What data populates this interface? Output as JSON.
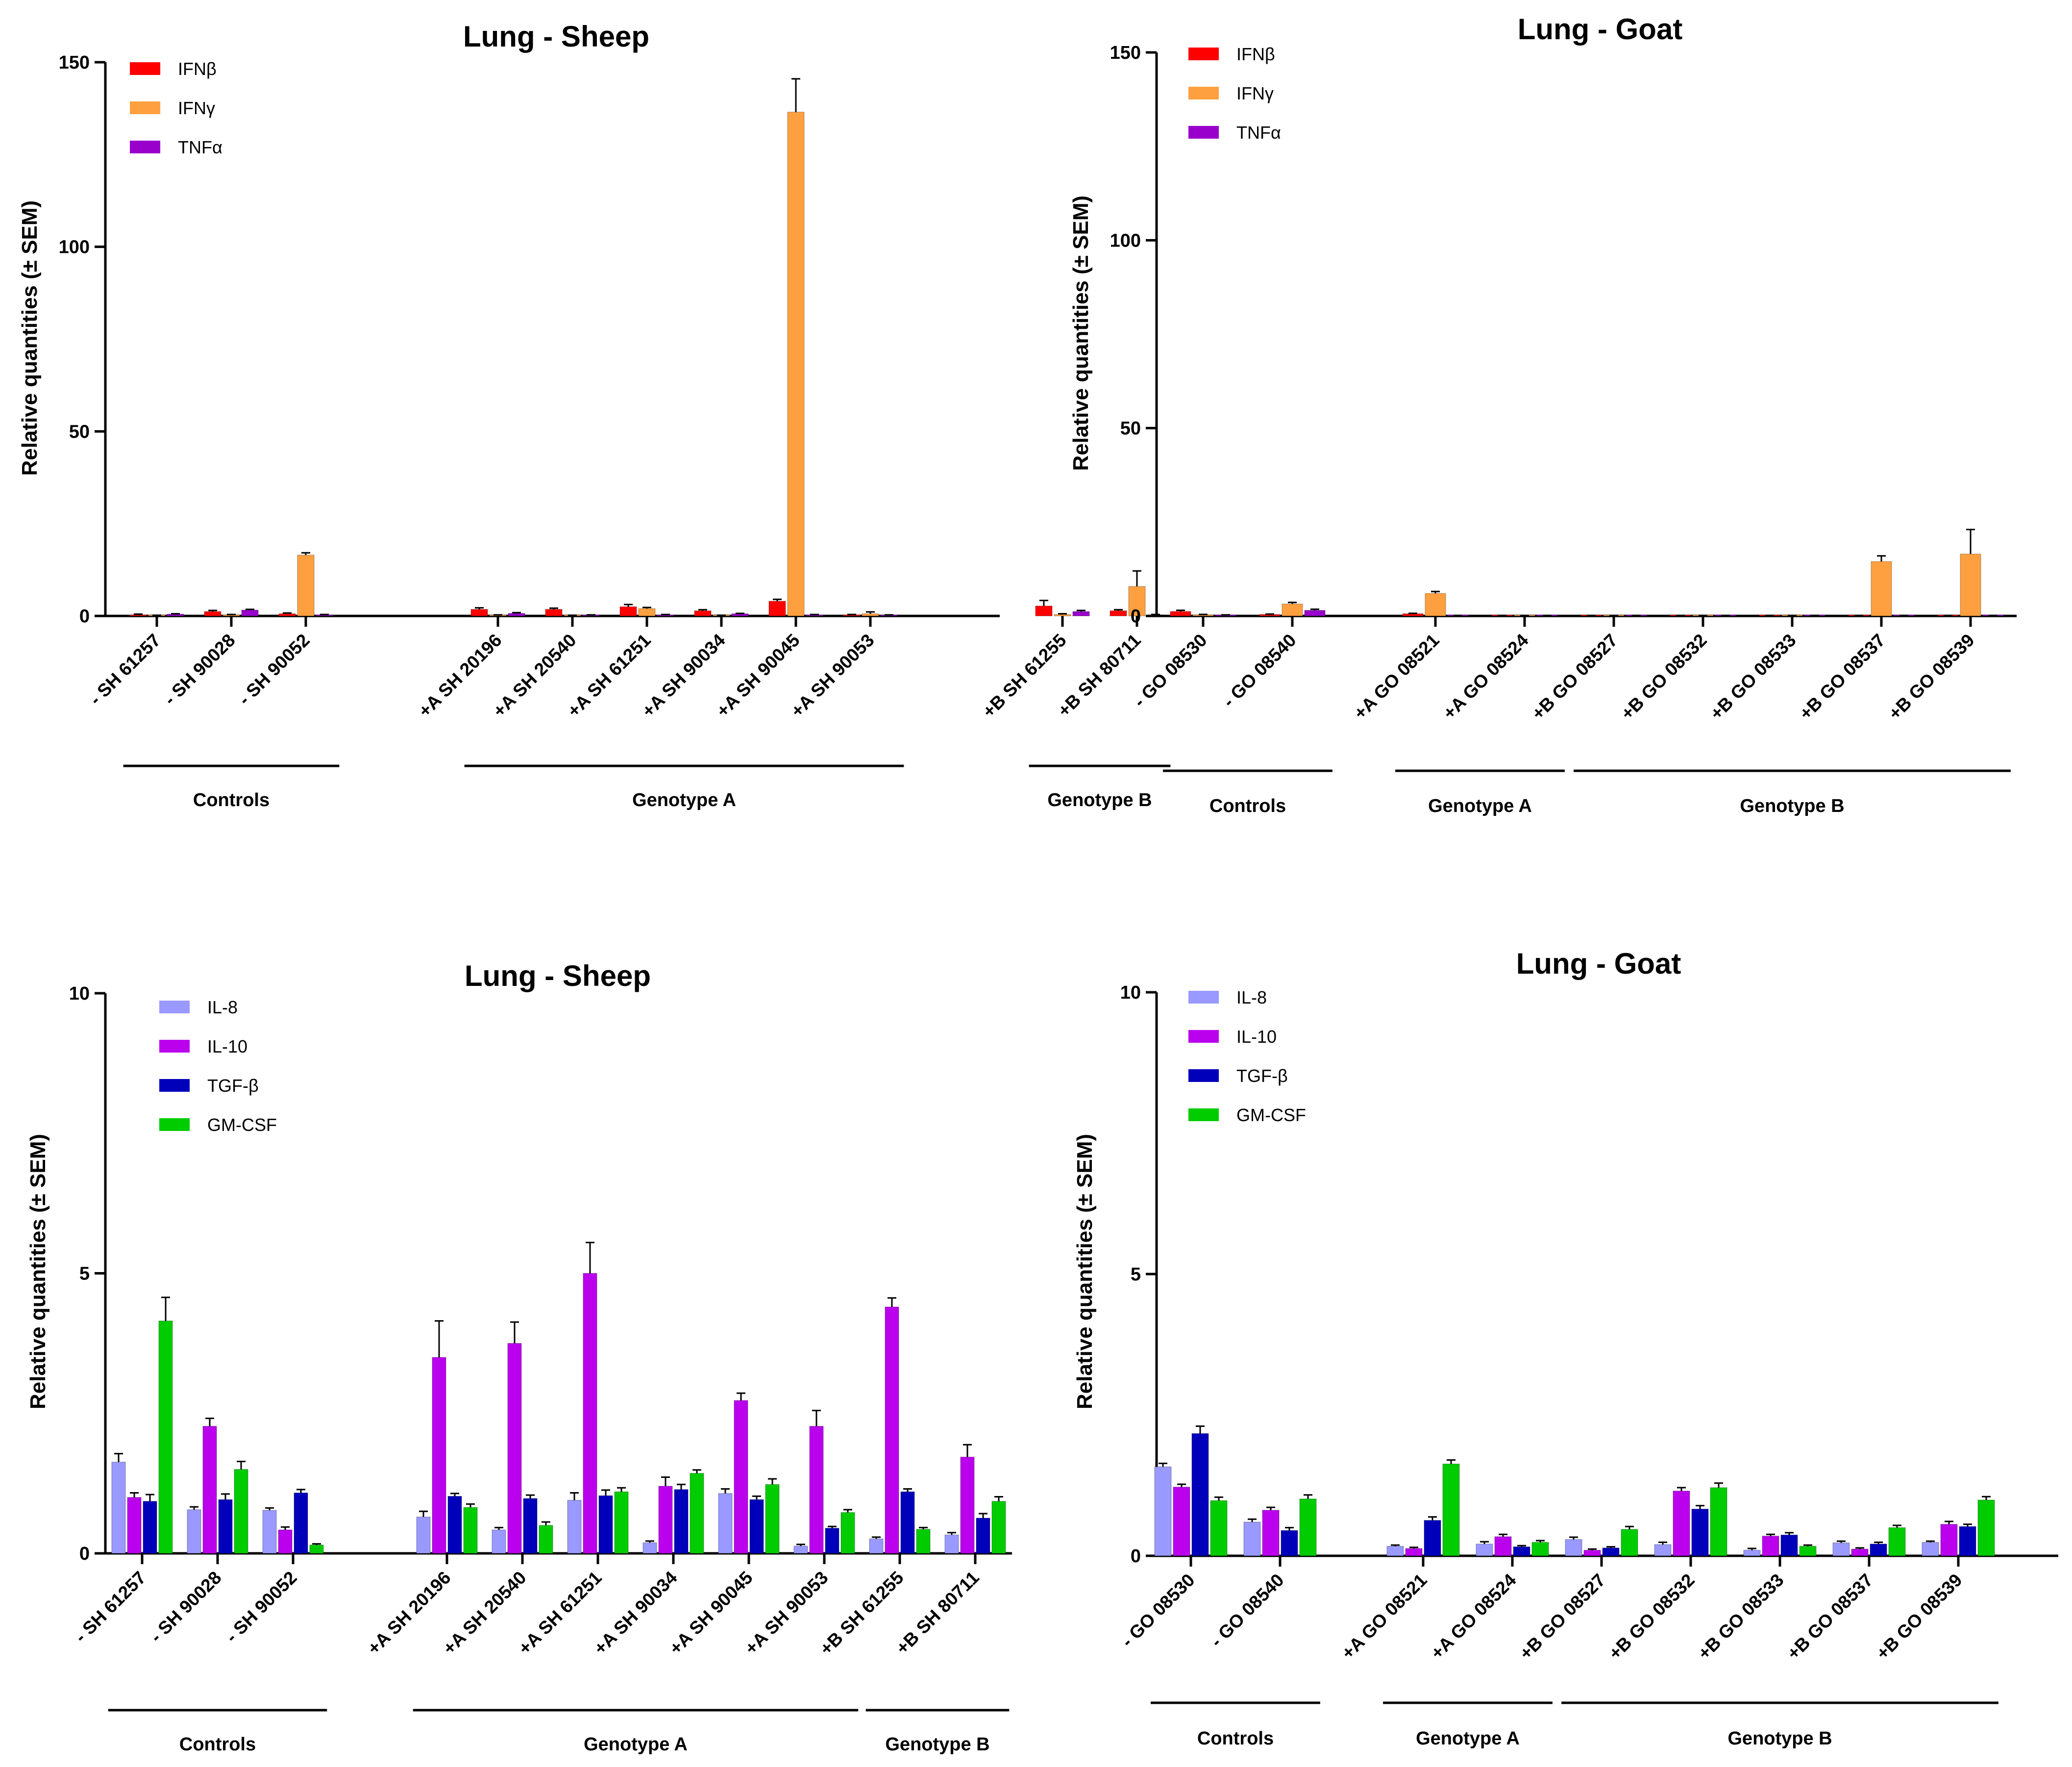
{
  "colors": {
    "IFNβ": "#ff0000",
    "IFNγ": "#ffa040",
    "TNFα": "#9900cc",
    "IL-8": "#9999ff",
    "IL-10": "#bb00ee",
    "TGF-β": "#0000bb",
    "GM-CSF": "#00cc00",
    "axis": "#000000",
    "errorbar": "#000000"
  },
  "chart_data": [
    {
      "type": "bar",
      "title": "Lung - Sheep",
      "xlabel": "",
      "ylabel": "Relative quantities (± SEM)",
      "ylim": [
        0,
        150
      ],
      "yticks": [
        0,
        50,
        100,
        150
      ],
      "legend_position": "top-left",
      "categories": [
        "- SH 61257",
        "- SH 90028",
        "- SH 90052",
        "+A SH 20196",
        "+A SH 20540",
        "+A SH 61251",
        "+A SH 90034",
        "+A SH 90045",
        "+A SH 90053",
        "+B SH 61255",
        "+B SH 80711"
      ],
      "groups": [
        {
          "label": "Controls",
          "start": 0,
          "end": 2
        },
        {
          "label": "Genotype A",
          "start": 3,
          "end": 8
        },
        {
          "label": "Genotype B",
          "start": 9,
          "end": 10
        }
      ],
      "series": [
        {
          "name": "IFNβ",
          "values": [
            0.3,
            1.2,
            0.6,
            1.8,
            1.8,
            2.5,
            1.4,
            4.0,
            0.3,
            2.7,
            1.4
          ],
          "errors": [
            0.2,
            0.3,
            0.2,
            0.4,
            0.3,
            0.6,
            0.3,
            0.5,
            0.1,
            1.5,
            0.3
          ]
        },
        {
          "name": "IFNγ",
          "values": [
            0.1,
            0.3,
            16.5,
            0.2,
            0.1,
            2.0,
            0.1,
            136.5,
            0.6,
            0.4,
            8.0
          ],
          "errors": [
            0.1,
            0.1,
            0.6,
            0.1,
            0.1,
            0.3,
            0.1,
            9.0,
            0.5,
            0.2,
            4.2
          ]
        },
        {
          "name": "TNFα",
          "values": [
            0.5,
            1.6,
            0.3,
            0.7,
            0.2,
            0.3,
            0.6,
            0.3,
            0.2,
            1.2,
            0.3
          ],
          "errors": [
            0.1,
            0.2,
            0.1,
            0.2,
            0.1,
            0.1,
            0.1,
            0.1,
            0.1,
            0.3,
            0.1
          ]
        }
      ]
    },
    {
      "type": "bar",
      "title": "Lung - Goat",
      "xlabel": "",
      "ylabel": "Relative quantities (± SEM)",
      "ylim": [
        0,
        150
      ],
      "yticks": [
        0,
        50,
        100,
        150
      ],
      "legend_position": "top-left",
      "categories": [
        "- GO 08530",
        "- GO 08540",
        "+A GO 08521",
        "+A GO 08524",
        "+B GO 08527",
        "+B GO 08532",
        "+B GO 08533",
        "+B GO 08537",
        "+B GO 08539"
      ],
      "groups": [
        {
          "label": "Controls",
          "start": 0,
          "end": 1
        },
        {
          "label": "Genotype A",
          "start": 2,
          "end": 3
        },
        {
          "label": "Genotype B",
          "start": 4,
          "end": 8
        }
      ],
      "series": [
        {
          "name": "IFNβ",
          "values": [
            1.2,
            0.4,
            0.6,
            0.1,
            0.1,
            0.1,
            0.1,
            0.1,
            0.1
          ],
          "errors": [
            0.3,
            0.1,
            0.1,
            0.05,
            0.05,
            0.05,
            0.05,
            0.05,
            0.05
          ]
        },
        {
          "name": "IFNγ",
          "values": [
            0.3,
            3.2,
            6.0,
            0.1,
            0.1,
            0.1,
            0.1,
            14.5,
            16.5
          ],
          "errors": [
            0.1,
            0.4,
            0.5,
            0.05,
            0.05,
            0.05,
            0.05,
            1.5,
            6.5
          ]
        },
        {
          "name": "TNFα",
          "values": [
            0.2,
            1.5,
            0.1,
            0.1,
            0.1,
            0.1,
            0.1,
            0.1,
            0.1
          ],
          "errors": [
            0.1,
            0.3,
            0.05,
            0.05,
            0.05,
            0.05,
            0.05,
            0.05,
            0.05
          ]
        }
      ]
    },
    {
      "type": "bar",
      "title": "Lung - Sheep",
      "xlabel": "",
      "ylabel": "Relative quantities (± SEM)",
      "ylim": [
        0,
        10
      ],
      "yticks": [
        0,
        5,
        10
      ],
      "legend_position": "top-left",
      "categories": [
        "- SH 61257",
        "- SH 90028",
        "- SH 90052",
        "+A SH 20196",
        "+A SH 20540",
        "+A SH 61251",
        "+A SH 90034",
        "+A SH 90045",
        "+A SH 90053",
        "+B SH 61255",
        "+B SH 80711"
      ],
      "groups": [
        {
          "label": "Controls",
          "start": 0,
          "end": 2
        },
        {
          "label": "Genotype A",
          "start": 3,
          "end": 8
        },
        {
          "label": "Genotype B",
          "start": 9,
          "end": 10
        }
      ],
      "series": [
        {
          "name": "IL-8",
          "values": [
            1.63,
            0.78,
            0.77,
            0.65,
            0.42,
            0.95,
            0.19,
            1.07,
            0.13,
            0.26,
            0.33
          ],
          "errors": [
            0.15,
            0.05,
            0.04,
            0.1,
            0.04,
            0.13,
            0.03,
            0.08,
            0.03,
            0.03,
            0.04
          ]
        },
        {
          "name": "IL-10",
          "values": [
            1.0,
            2.27,
            0.42,
            3.5,
            3.75,
            5.0,
            1.2,
            2.73,
            2.27,
            4.4,
            1.72
          ],
          "errors": [
            0.08,
            0.14,
            0.05,
            0.65,
            0.38,
            0.55,
            0.16,
            0.13,
            0.28,
            0.16,
            0.22
          ]
        },
        {
          "name": "TGF-β",
          "values": [
            0.93,
            0.96,
            1.08,
            1.02,
            0.98,
            1.03,
            1.14,
            0.96,
            0.45,
            1.1,
            0.63
          ],
          "errors": [
            0.12,
            0.1,
            0.06,
            0.05,
            0.06,
            0.1,
            0.09,
            0.06,
            0.03,
            0.05,
            0.08
          ]
        },
        {
          "name": "GM-CSF",
          "values": [
            4.15,
            1.5,
            0.15,
            0.82,
            0.5,
            1.1,
            1.43,
            1.23,
            0.73,
            0.43,
            0.93
          ],
          "errors": [
            0.42,
            0.14,
            0.02,
            0.06,
            0.06,
            0.07,
            0.06,
            0.1,
            0.05,
            0.03,
            0.08
          ]
        }
      ]
    },
    {
      "type": "bar",
      "title": "Lung - Goat",
      "xlabel": "",
      "ylabel": "Relative quantities (± SEM)",
      "ylim": [
        0,
        10
      ],
      "yticks": [
        0,
        5,
        10
      ],
      "legend_position": "top-left",
      "categories": [
        "- GO 08530",
        "- GO 08540",
        "+A GO 08521",
        "+A GO 08524",
        "+B GO 08527",
        "+B GO 08532",
        "+B GO 08533",
        "+B GO 08537",
        "+B GO 08539"
      ],
      "groups": [
        {
          "label": "Controls",
          "start": 0,
          "end": 1
        },
        {
          "label": "Genotype A",
          "start": 2,
          "end": 3
        },
        {
          "label": "Genotype B",
          "start": 4,
          "end": 8
        }
      ],
      "series": [
        {
          "name": "IL-8",
          "values": [
            1.58,
            0.6,
            0.17,
            0.21,
            0.29,
            0.2,
            0.1,
            0.23,
            0.24
          ],
          "errors": [
            0.06,
            0.05,
            0.02,
            0.04,
            0.04,
            0.04,
            0.03,
            0.03,
            0.02
          ]
        },
        {
          "name": "IL-10",
          "values": [
            1.22,
            0.81,
            0.13,
            0.34,
            0.1,
            1.15,
            0.35,
            0.12,
            0.56
          ],
          "errors": [
            0.05,
            0.05,
            0.02,
            0.04,
            0.02,
            0.06,
            0.03,
            0.02,
            0.05
          ]
        },
        {
          "name": "TGF-β",
          "values": [
            2.17,
            0.45,
            0.63,
            0.16,
            0.14,
            0.83,
            0.37,
            0.21,
            0.52
          ],
          "errors": [
            0.13,
            0.05,
            0.06,
            0.02,
            0.02,
            0.06,
            0.04,
            0.03,
            0.04
          ]
        },
        {
          "name": "GM-CSF",
          "values": [
            0.98,
            1.01,
            1.63,
            0.24,
            0.47,
            1.21,
            0.17,
            0.5,
            0.99
          ],
          "errors": [
            0.06,
            0.07,
            0.07,
            0.03,
            0.05,
            0.08,
            0.02,
            0.04,
            0.06
          ]
        }
      ]
    }
  ]
}
